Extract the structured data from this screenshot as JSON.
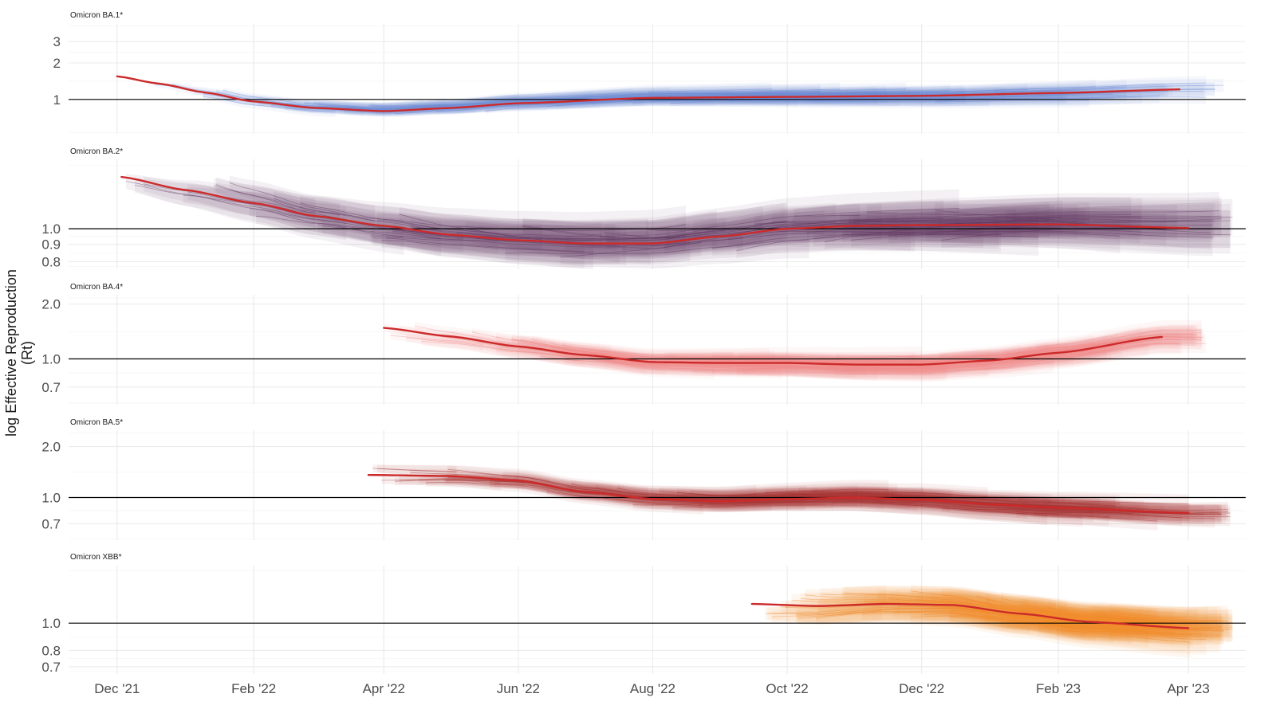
{
  "chart_data": {
    "type": "line",
    "ylabel": "log Effective Reproduction\n(Rt)",
    "xlabel": "",
    "x_ticks": [
      {
        "date": "2021-12-01",
        "label": "Dec '21"
      },
      {
        "date": "2022-02-01",
        "label": "Feb '22"
      },
      {
        "date": "2022-04-01",
        "label": "Apr '22"
      },
      {
        "date": "2022-06-01",
        "label": "Jun '22"
      },
      {
        "date": "2022-08-01",
        "label": "Aug '22"
      },
      {
        "date": "2022-10-01",
        "label": "Oct '22"
      },
      {
        "date": "2022-12-01",
        "label": "Dec '22"
      },
      {
        "date": "2023-02-01",
        "label": "Feb '23"
      },
      {
        "date": "2023-04-01",
        "label": "Apr '23"
      }
    ],
    "x_range": [
      "2021-11-09",
      "2023-04-27"
    ],
    "y_scale": "log",
    "reference_line": 1.0,
    "grid": true,
    "panels": [
      {
        "title": "Omicron BA.1*",
        "color": "#6f8fd8",
        "trend_color": "#cc2a2a",
        "ylim": [
          0.52,
          4.2
        ],
        "y_ticks": [
          {
            "value": 1,
            "label": "1"
          },
          {
            "value": 2,
            "label": "2"
          },
          {
            "value": 3,
            "label": "3"
          }
        ],
        "trend": [
          {
            "date": "2021-12-01",
            "rt": 1.55
          },
          {
            "date": "2021-12-20",
            "rt": 1.35
          },
          {
            "date": "2022-01-10",
            "rt": 1.14
          },
          {
            "date": "2022-02-01",
            "rt": 0.96
          },
          {
            "date": "2022-03-01",
            "rt": 0.85
          },
          {
            "date": "2022-04-01",
            "rt": 0.8
          },
          {
            "date": "2022-05-01",
            "rt": 0.85
          },
          {
            "date": "2022-06-01",
            "rt": 0.93
          },
          {
            "date": "2022-08-01",
            "rt": 1.03
          },
          {
            "date": "2022-10-01",
            "rt": 1.05
          },
          {
            "date": "2022-12-01",
            "rt": 1.07
          },
          {
            "date": "2023-02-01",
            "rt": 1.13
          },
          {
            "date": "2023-03-28",
            "rt": 1.21
          }
        ]
      },
      {
        "title": "Omicron BA.2*",
        "color": "#5e3560",
        "trend_color": "#cc2a2a",
        "ylim": [
          0.76,
          1.6
        ],
        "y_ticks": [
          {
            "value": 0.8,
            "label": "0.8"
          },
          {
            "value": 0.9,
            "label": "0.9"
          },
          {
            "value": 1.0,
            "label": "1.0"
          }
        ],
        "trend": [
          {
            "date": "2021-12-03",
            "rt": 1.42
          },
          {
            "date": "2022-01-01",
            "rt": 1.3
          },
          {
            "date": "2022-02-01",
            "rt": 1.19
          },
          {
            "date": "2022-03-01",
            "rt": 1.09
          },
          {
            "date": "2022-04-01",
            "rt": 1.02
          },
          {
            "date": "2022-05-01",
            "rt": 0.96
          },
          {
            "date": "2022-06-01",
            "rt": 0.925
          },
          {
            "date": "2022-07-01",
            "rt": 0.905
          },
          {
            "date": "2022-08-01",
            "rt": 0.905
          },
          {
            "date": "2022-09-01",
            "rt": 0.95
          },
          {
            "date": "2022-10-01",
            "rt": 1.0
          },
          {
            "date": "2022-11-01",
            "rt": 1.02
          },
          {
            "date": "2022-12-01",
            "rt": 1.025
          },
          {
            "date": "2023-02-01",
            "rt": 1.03
          },
          {
            "date": "2023-04-01",
            "rt": 1.005
          }
        ]
      },
      {
        "title": "Omicron BA.4*",
        "color": "#ef8d8b",
        "trend_color": "#cc2a2a",
        "ylim": [
          0.56,
          2.25
        ],
        "y_ticks": [
          {
            "value": 0.7,
            "label": "0.7"
          },
          {
            "value": 1.0,
            "label": "1.0"
          },
          {
            "value": 2.0,
            "label": "2.0"
          }
        ],
        "trend": [
          {
            "date": "2022-04-01",
            "rt": 1.48
          },
          {
            "date": "2022-05-01",
            "rt": 1.33
          },
          {
            "date": "2022-06-01",
            "rt": 1.17
          },
          {
            "date": "2022-07-01",
            "rt": 1.05
          },
          {
            "date": "2022-08-01",
            "rt": 0.96
          },
          {
            "date": "2022-09-01",
            "rt": 0.95
          },
          {
            "date": "2022-10-01",
            "rt": 0.95
          },
          {
            "date": "2022-11-01",
            "rt": 0.93
          },
          {
            "date": "2022-12-01",
            "rt": 0.93
          },
          {
            "date": "2023-01-01",
            "rt": 0.98
          },
          {
            "date": "2023-02-01",
            "rt": 1.08
          },
          {
            "date": "2023-03-20",
            "rt": 1.32
          }
        ]
      },
      {
        "title": "Omicron BA.5*",
        "color": "#a63232",
        "trend_color": "#cc2a2a",
        "ylim": [
          0.56,
          2.5
        ],
        "y_ticks": [
          {
            "value": 0.7,
            "label": "0.7"
          },
          {
            "value": 1.0,
            "label": "1.0"
          },
          {
            "value": 2.0,
            "label": "2.0"
          }
        ],
        "trend": [
          {
            "date": "2022-03-25",
            "rt": 1.36
          },
          {
            "date": "2022-05-01",
            "rt": 1.34
          },
          {
            "date": "2022-06-01",
            "rt": 1.26
          },
          {
            "date": "2022-07-01",
            "rt": 1.08
          },
          {
            "date": "2022-08-01",
            "rt": 0.98
          },
          {
            "date": "2022-09-01",
            "rt": 0.95
          },
          {
            "date": "2022-10-01",
            "rt": 0.98
          },
          {
            "date": "2022-11-01",
            "rt": 1.0
          },
          {
            "date": "2022-12-01",
            "rt": 0.97
          },
          {
            "date": "2023-01-01",
            "rt": 0.91
          },
          {
            "date": "2023-02-01",
            "rt": 0.87
          },
          {
            "date": "2023-04-01",
            "rt": 0.81
          }
        ]
      },
      {
        "title": "Omicron XBB*",
        "color": "#f28a2e",
        "trend_color": "#cc2a2a",
        "ylim": [
          0.66,
          1.6
        ],
        "y_ticks": [
          {
            "value": 0.7,
            "label": "0.7"
          },
          {
            "value": 0.8,
            "label": "0.8"
          },
          {
            "value": 1.0,
            "label": "1.0"
          }
        ],
        "trend": [
          {
            "date": "2022-09-15",
            "rt": 1.17
          },
          {
            "date": "2022-10-15",
            "rt": 1.15
          },
          {
            "date": "2022-11-15",
            "rt": 1.17
          },
          {
            "date": "2022-12-15",
            "rt": 1.16
          },
          {
            "date": "2023-01-15",
            "rt": 1.08
          },
          {
            "date": "2023-02-15",
            "rt": 1.01
          },
          {
            "date": "2023-04-01",
            "rt": 0.96
          }
        ]
      }
    ]
  }
}
